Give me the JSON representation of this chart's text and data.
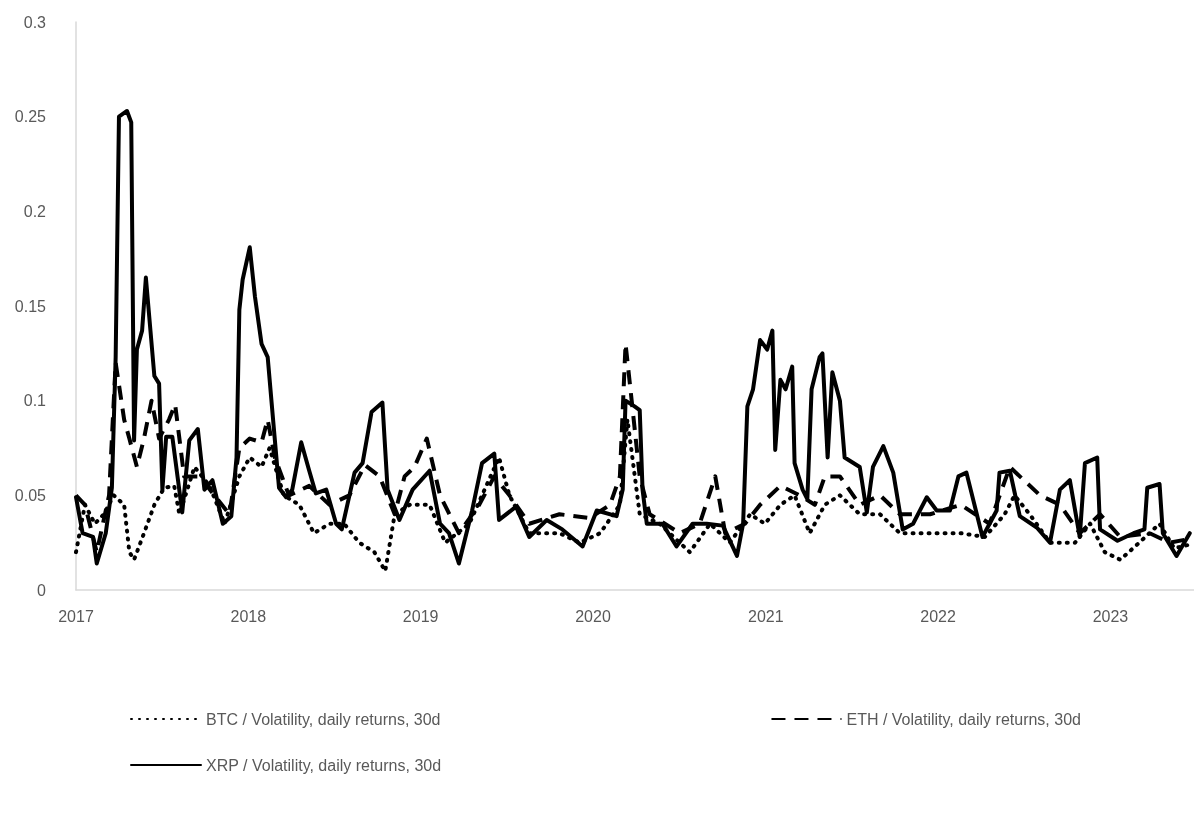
{
  "chart_data": {
    "type": "line",
    "xlim": [
      "2017-01-01",
      "2023-06-27"
    ],
    "xticks": [
      {
        "value": "2017",
        "label": "2017"
      },
      {
        "value": "2018",
        "label": "2018"
      },
      {
        "value": "2019",
        "label": "2019"
      },
      {
        "value": "2020",
        "label": "2020"
      },
      {
        "value": "2021",
        "label": "2021"
      },
      {
        "value": "2022",
        "label": "2022"
      },
      {
        "value": "2023",
        "label": "2023"
      }
    ],
    "ylim": [
      0,
      0.3
    ],
    "yticks": [
      0,
      0.05,
      0.1,
      0.15,
      0.2,
      0.25,
      0.3
    ],
    "grid": false,
    "legend": "bottom",
    "marker": "none",
    "series": [
      {
        "name": "BTC / Volatility, daily returns, 30d",
        "color": "#000000",
        "line_style": "dotted",
        "x": [
          "2017-01-01",
          "2017-01-20",
          "2017-02-10",
          "2017-03-01",
          "2017-03-22",
          "2017-04-13",
          "2017-04-24",
          "2017-05-04",
          "2017-05-25",
          "2017-06-16",
          "2017-07-07",
          "2017-07-28",
          "2017-08-08",
          "2017-09-09",
          "2017-10-11",
          "2017-11-12",
          "2017-12-13",
          "2018-01-04",
          "2018-01-29",
          "2018-02-15",
          "2018-03-17",
          "2018-04-19",
          "2018-05-20",
          "2018-06-22",
          "2018-07-23",
          "2018-08-24",
          "2018-09-25",
          "2018-10-18",
          "2018-11-07",
          "2018-12-09",
          "2019-01-20",
          "2019-02-22",
          "2019-04-14",
          "2019-06-16",
          "2019-07-08",
          "2019-08-19",
          "2019-10-22",
          "2019-12-04",
          "2020-01-16",
          "2020-02-27",
          "2020-03-14",
          "2020-04-09",
          "2020-05-21",
          "2020-07-24",
          "2020-09-05",
          "2020-10-17",
          "2020-11-29",
          "2020-12-30",
          "2021-02-01",
          "2021-03-03",
          "2021-04-04",
          "2021-05-06",
          "2021-06-07",
          "2021-07-19",
          "2021-08-31",
          "2021-10-12",
          "2021-12-15",
          "2022-02-18",
          "2022-04-10",
          "2022-05-22",
          "2022-06-12",
          "2022-07-14",
          "2022-08-26",
          "2022-10-18",
          "2022-11-19",
          "2022-12-20",
          "2023-01-22",
          "2023-03-03",
          "2023-04-15",
          "2023-05-16",
          "2023-06-18"
        ],
        "values": [
          0.02,
          0.045,
          0.035,
          0.04,
          0.05,
          0.045,
          0.02,
          0.016,
          0.03,
          0.045,
          0.054,
          0.055,
          0.04,
          0.065,
          0.055,
          0.035,
          0.06,
          0.07,
          0.065,
          0.075,
          0.05,
          0.045,
          0.03,
          0.035,
          0.035,
          0.025,
          0.02,
          0.01,
          0.04,
          0.045,
          0.045,
          0.025,
          0.035,
          0.07,
          0.05,
          0.03,
          0.03,
          0.025,
          0.03,
          0.045,
          0.09,
          0.04,
          0.035,
          0.02,
          0.035,
          0.025,
          0.04,
          0.035,
          0.045,
          0.05,
          0.03,
          0.045,
          0.05,
          0.04,
          0.04,
          0.03,
          0.03,
          0.03,
          0.028,
          0.04,
          0.05,
          0.04,
          0.025,
          0.025,
          0.035,
          0.02,
          0.016,
          0.025,
          0.035,
          0.022,
          0.024
        ]
      },
      {
        "name": "ETH / Volatility, daily returns, 30d",
        "color": "#000000",
        "line_style": "dashed",
        "x": [
          "2017-01-01",
          "2017-01-20",
          "2017-02-14",
          "2017-03-12",
          "2017-03-26",
          "2017-04-13",
          "2017-04-24",
          "2017-05-10",
          "2017-05-25",
          "2017-06-10",
          "2017-06-26",
          "2017-07-17",
          "2017-07-30",
          "2017-08-18",
          "2017-09-20",
          "2017-10-21",
          "2017-11-22",
          "2017-12-13",
          "2018-01-04",
          "2018-01-29",
          "2018-02-11",
          "2018-02-26",
          "2018-03-28",
          "2018-05-10",
          "2018-06-22",
          "2018-08-03",
          "2018-09-05",
          "2018-10-06",
          "2018-11-07",
          "2018-11-28",
          "2018-12-19",
          "2019-01-14",
          "2019-02-11",
          "2019-03-23",
          "2019-05-05",
          "2019-06-06",
          "2019-07-08",
          "2019-08-19",
          "2019-10-22",
          "2019-12-25",
          "2020-02-06",
          "2020-02-27",
          "2020-03-10",
          "2020-03-23",
          "2020-04-09",
          "2020-04-30",
          "2020-07-03",
          "2020-08-14",
          "2020-09-16",
          "2020-10-07",
          "2020-11-18",
          "2020-12-20",
          "2021-02-01",
          "2021-03-14",
          "2021-04-15",
          "2021-05-06",
          "2021-06-07",
          "2021-07-19",
          "2021-08-31",
          "2021-10-12",
          "2021-12-15",
          "2022-02-18",
          "2022-04-20",
          "2022-06-02",
          "2022-06-23",
          "2022-08-05",
          "2022-09-16",
          "2022-10-28",
          "2022-12-10",
          "2023-01-22",
          "2023-03-25",
          "2023-05-06",
          "2023-06-18"
        ],
        "values": [
          0.05,
          0.045,
          0.02,
          0.05,
          0.12,
          0.09,
          0.08,
          0.065,
          0.08,
          0.1,
          0.08,
          0.09,
          0.098,
          0.06,
          0.06,
          0.05,
          0.04,
          0.075,
          0.08,
          0.078,
          0.09,
          0.07,
          0.05,
          0.055,
          0.045,
          0.05,
          0.066,
          0.06,
          0.04,
          0.06,
          0.065,
          0.08,
          0.05,
          0.03,
          0.045,
          0.06,
          0.05,
          0.035,
          0.04,
          0.038,
          0.045,
          0.06,
          0.13,
          0.1,
          0.06,
          0.04,
          0.03,
          0.035,
          0.06,
          0.03,
          0.035,
          0.045,
          0.055,
          0.05,
          0.045,
          0.06,
          0.06,
          0.045,
          0.05,
          0.04,
          0.04,
          0.045,
          0.035,
          0.065,
          0.06,
          0.05,
          0.045,
          0.03,
          0.04,
          0.028,
          0.03,
          0.025,
          0.027
        ]
      },
      {
        "name": "XRP / Volatility, daily returns, 30d",
        "color": "#000000",
        "line_style": "solid",
        "x": [
          "2017-01-01",
          "2017-01-15",
          "2017-02-06",
          "2017-02-14",
          "2017-03-05",
          "2017-03-18",
          "2017-03-26",
          "2017-04-02",
          "2017-04-19",
          "2017-04-28",
          "2017-05-04",
          "2017-05-10",
          "2017-05-21",
          "2017-05-29",
          "2017-06-16",
          "2017-06-26",
          "2017-07-03",
          "2017-07-11",
          "2017-07-24",
          "2017-08-14",
          "2017-08-29",
          "2017-09-16",
          "2017-09-30",
          "2017-10-17",
          "2017-11-08",
          "2017-11-26",
          "2017-12-07",
          "2017-12-13",
          "2017-12-20",
          "2018-01-04",
          "2018-01-15",
          "2018-01-29",
          "2018-02-11",
          "2018-02-20",
          "2018-03-07",
          "2018-03-22",
          "2018-04-04",
          "2018-04-23",
          "2018-05-10",
          "2018-05-24",
          "2018-06-15",
          "2018-07-06",
          "2018-07-18",
          "2018-08-14",
          "2018-08-31",
          "2018-09-19",
          "2018-10-12",
          "2018-10-23",
          "2018-11-17",
          "2018-12-15",
          "2019-01-20",
          "2019-02-11",
          "2019-03-02",
          "2019-03-23",
          "2019-04-20",
          "2019-05-11",
          "2019-06-06",
          "2019-06-16",
          "2019-07-22",
          "2019-08-19",
          "2019-09-25",
          "2019-10-28",
          "2019-12-10",
          "2020-01-09",
          "2020-02-20",
          "2020-03-04",
          "2020-03-10",
          "2020-03-29",
          "2020-04-09",
          "2020-04-15",
          "2020-04-24",
          "2020-05-27",
          "2020-06-26",
          "2020-07-30",
          "2020-08-29",
          "2020-10-02",
          "2020-11-01",
          "2020-11-14",
          "2020-11-23",
          "2020-12-05",
          "2020-12-20",
          "2021-01-04",
          "2021-01-15",
          "2021-01-21",
          "2021-02-01",
          "2021-02-12",
          "2021-02-26",
          "2021-03-03",
          "2021-03-20",
          "2021-03-30",
          "2021-04-08",
          "2021-04-25",
          "2021-05-01",
          "2021-05-12",
          "2021-05-22",
          "2021-06-07",
          "2021-06-17",
          "2021-07-19",
          "2021-08-03",
          "2021-08-16",
          "2021-09-07",
          "2021-09-28",
          "2021-10-18",
          "2021-11-09",
          "2021-12-08",
          "2021-12-29",
          "2022-01-26",
          "2022-02-13",
          "2022-03-02",
          "2022-04-05",
          "2022-05-05",
          "2022-05-11",
          "2022-06-02",
          "2022-06-23",
          "2022-07-29",
          "2022-08-26",
          "2022-09-16",
          "2022-10-07",
          "2022-10-28",
          "2022-11-08",
          "2022-12-04",
          "2022-12-10",
          "2023-01-16",
          "2023-02-19",
          "2023-03-14",
          "2023-03-20",
          "2023-04-15",
          "2023-04-22",
          "2023-05-21",
          "2023-06-18"
        ],
        "values": [
          0.049,
          0.03,
          0.028,
          0.014,
          0.03,
          0.054,
          0.123,
          0.25,
          0.253,
          0.247,
          0.079,
          0.127,
          0.137,
          0.165,
          0.113,
          0.109,
          0.053,
          0.081,
          0.081,
          0.041,
          0.079,
          0.085,
          0.053,
          0.058,
          0.035,
          0.039,
          0.07,
          0.148,
          0.164,
          0.181,
          0.155,
          0.13,
          0.123,
          0.097,
          0.054,
          0.049,
          0.053,
          0.078,
          0.063,
          0.051,
          0.053,
          0.035,
          0.032,
          0.062,
          0.067,
          0.094,
          0.099,
          0.053,
          0.037,
          0.053,
          0.063,
          0.035,
          0.03,
          0.014,
          0.042,
          0.067,
          0.072,
          0.037,
          0.044,
          0.028,
          0.037,
          0.032,
          0.023,
          0.042,
          0.039,
          0.053,
          0.1,
          0.097,
          0.095,
          0.053,
          0.035,
          0.035,
          0.023,
          0.035,
          0.035,
          0.034,
          0.018,
          0.035,
          0.097,
          0.106,
          0.132,
          0.127,
          0.137,
          0.074,
          0.111,
          0.106,
          0.118,
          0.067,
          0.053,
          0.048,
          0.106,
          0.123,
          0.125,
          0.07,
          0.115,
          0.1,
          0.07,
          0.065,
          0.041,
          0.065,
          0.076,
          0.062,
          0.032,
          0.035,
          0.049,
          0.042,
          0.042,
          0.06,
          0.062,
          0.028,
          0.042,
          0.062,
          0.063,
          0.039,
          0.033,
          0.025,
          0.053,
          0.058,
          0.028,
          0.067,
          0.07,
          0.032,
          0.026,
          0.03,
          0.032,
          0.054,
          0.056,
          0.03,
          0.018,
          0.03
        ]
      }
    ]
  }
}
